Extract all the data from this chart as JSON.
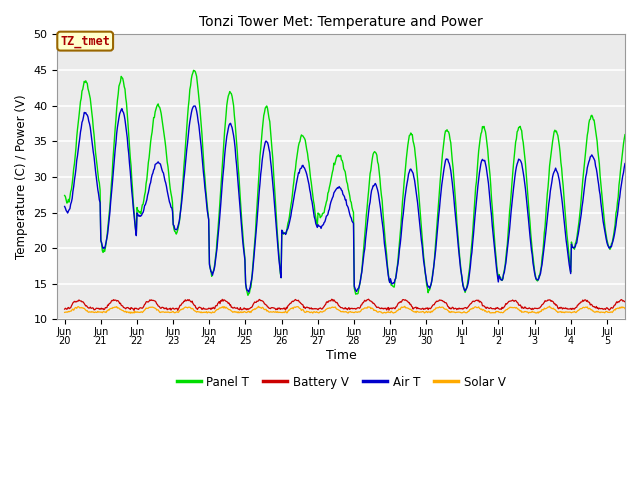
{
  "title": "Tonzi Tower Met: Temperature and Power",
  "xlabel": "Time",
  "ylabel": "Temperature (C) / Power (V)",
  "ylim": [
    10,
    50
  ],
  "background_color": "#ebebeb",
  "grid_color": "white",
  "colors": {
    "panel_t": "#00dd00",
    "battery_v": "#cc0000",
    "air_t": "#0000cc",
    "solar_v": "#ffaa00"
  },
  "legend_labels": [
    "Panel T",
    "Battery V",
    "Air T",
    "Solar V"
  ],
  "annotation_text": "TZ_tmet",
  "annotation_bg": "#ffffcc",
  "annotation_border": "#996600",
  "annotation_text_color": "#aa0000",
  "tick_labels": [
    "Jun\n20",
    "Jun\n21",
    "Jun\n22",
    "Jun\n23",
    "Jun\n24",
    "Jun\n25",
    "Jun\n26",
    "Jun\n27",
    "Jun\n28",
    "Jun\n29",
    "Jun\n30",
    "Jul\n1",
    "Jul\n2",
    "Jul\n3",
    "Jul\n4",
    "Jul\n5"
  ],
  "yticks": [
    10,
    15,
    20,
    25,
    30,
    35,
    40,
    45,
    50
  ]
}
